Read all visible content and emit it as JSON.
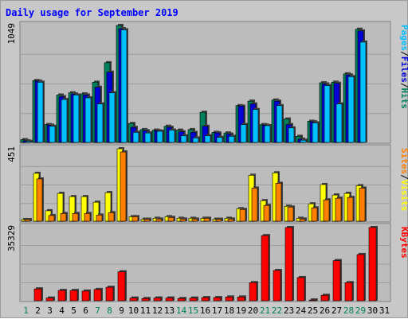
{
  "chart_data": {
    "type": "bar",
    "title": "Daily usage for September 2019",
    "colors": {
      "background": "#c8c8c8",
      "plot_background": "#bcbcbc",
      "grid": "#9c9c9c",
      "title": "#0000ff",
      "hits": "#00805c",
      "files": "#0000d8",
      "pages": "#00c0ff",
      "visits": "#ffff00",
      "sites": "#ff8000",
      "kbytes": "#ff0000",
      "day_weekday": "#000000",
      "day_weekend": "#00805c"
    },
    "x": {
      "days": [
        "1",
        "2",
        "3",
        "4",
        "5",
        "6",
        "7",
        "8",
        "9",
        "10",
        "11",
        "12",
        "13",
        "14",
        "15",
        "16",
        "17",
        "18",
        "19",
        "20",
        "21",
        "22",
        "23",
        "24",
        "25",
        "26",
        "27",
        "28",
        "29",
        "30",
        "31"
      ],
      "weekend": [
        true,
        false,
        false,
        false,
        false,
        false,
        true,
        true,
        false,
        false,
        false,
        false,
        false,
        true,
        true,
        false,
        false,
        false,
        false,
        false,
        true,
        true,
        false,
        false,
        false,
        false,
        false,
        true,
        true,
        false,
        false
      ]
    },
    "panels": [
      {
        "id": "hits-files-pages",
        "max_label": "1049",
        "ymax": 1049,
        "right_label": [
          "Pages",
          "/",
          "Files",
          "/",
          "Hits"
        ],
        "right_label_colors": [
          "pages",
          "black",
          "files",
          "black",
          "hits"
        ],
        "series": [
          {
            "name": "Hits",
            "color": "hits",
            "values": [
              25,
              555,
              160,
              425,
              445,
              435,
              540,
              715,
              1049,
              170,
              115,
              110,
              145,
              110,
              115,
              270,
              90,
              85,
              330,
              370,
              160,
              380,
              210,
              55,
              190,
              535,
              540,
              615,
              1015,
              0,
              0
            ]
          },
          {
            "name": "Files",
            "color": "files",
            "values": [
              15,
              550,
              155,
              410,
              435,
              425,
              495,
              630,
              1020,
              135,
              105,
              105,
              135,
              95,
              90,
              145,
              85,
              75,
              325,
              345,
              155,
              370,
              160,
              30,
              185,
              525,
              530,
              605,
              1000,
              0,
              0
            ]
          },
          {
            "name": "Pages",
            "color": "pages",
            "values": [
              10,
              540,
              145,
              385,
              425,
              400,
              345,
              445,
              1010,
              90,
              85,
              100,
              110,
              60,
              40,
              60,
              45,
              55,
              160,
              295,
              150,
              330,
              130,
              20,
              175,
              510,
              345,
              590,
              900,
              0,
              0
            ]
          }
        ],
        "daymap": [
          0,
          1,
          2,
          3,
          4,
          5,
          6,
          7,
          8,
          9,
          10,
          11,
          12,
          13,
          14,
          15,
          16,
          17,
          18,
          19,
          20,
          21,
          22,
          23,
          24,
          25,
          26,
          27,
          28,
          29,
          30
        ]
      },
      {
        "id": "visits-sites",
        "max_label": "451",
        "ymax": 451,
        "right_label": [
          "Sites",
          "/",
          "Visits"
        ],
        "right_label_colors": [
          "sites",
          "black",
          "visits"
        ],
        "series": [
          {
            "name": "Visits",
            "color": "visits",
            "values": [
              10,
              298,
              65,
              173,
              153,
              153,
              118,
              178,
              451,
              28,
              12,
              18,
              28,
              18,
              18,
              18,
              12,
              18,
              78,
              286,
              128,
              301,
              93,
              18,
              108,
              228,
              163,
              173,
              221,
              0,
              0
            ]
          },
          {
            "name": "Sites",
            "color": "sites",
            "values": [
              10,
              263,
              35,
              48,
              48,
              48,
              38,
              53,
              431,
              28,
              12,
              13,
              23,
              13,
              13,
              18,
              12,
              13,
              73,
              206,
              98,
              236,
              88,
              13,
              83,
              133,
              143,
              148,
              206,
              0,
              0
            ]
          }
        ]
      },
      {
        "id": "kbytes",
        "max_label": "35329",
        "ymax": 35329,
        "right_label": [
          "KBytes"
        ],
        "right_label_colors": [
          "kbytes"
        ],
        "series": [
          {
            "name": "KBytes",
            "color": "kbytes",
            "values": [
              0,
              5710,
              1280,
              4950,
              4950,
              4650,
              5430,
              6490,
              13940,
              1280,
              1060,
              1320,
              1320,
              1060,
              1280,
              1510,
              1510,
              1800,
              1800,
              8730,
              31430,
              14590,
              35329,
              11170,
              360,
              2620,
              19370,
              8730,
              22300,
              35329,
              0
            ]
          }
        ]
      }
    ]
  }
}
